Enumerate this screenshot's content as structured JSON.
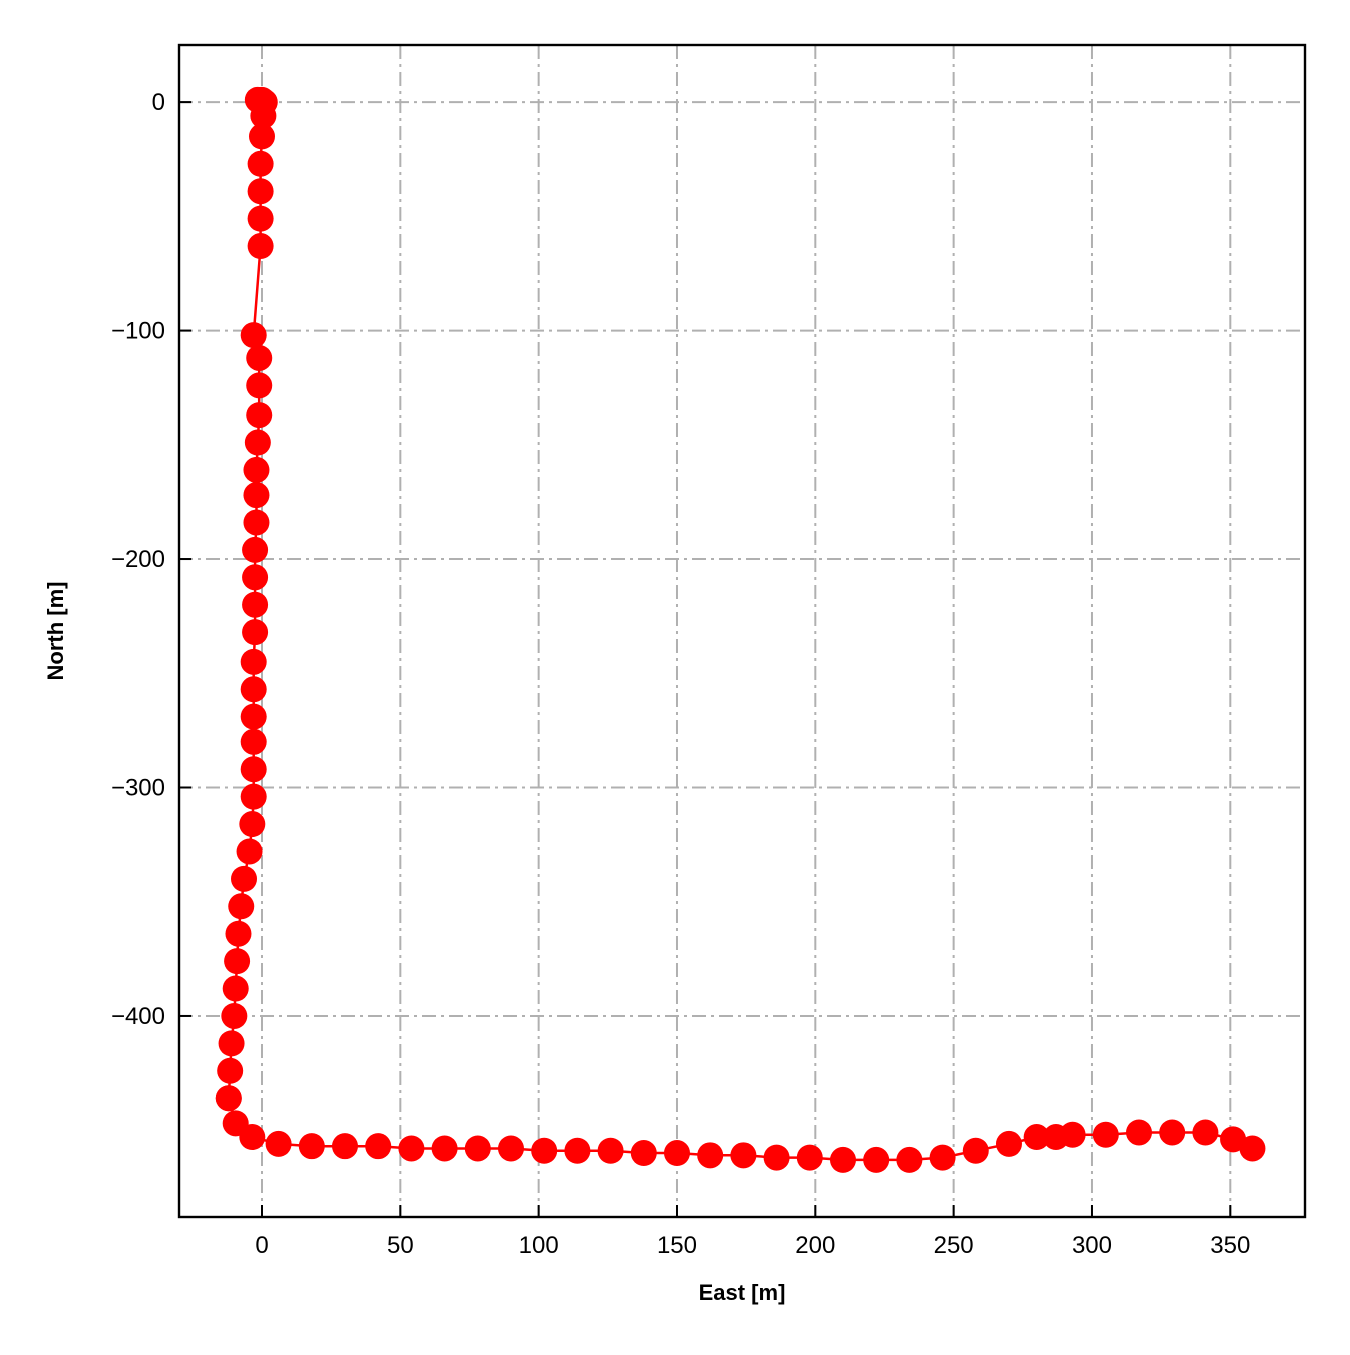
{
  "chart_data": {
    "type": "line",
    "title": "",
    "xlabel": "East [m]",
    "ylabel": "North [m]",
    "xlim": [
      -30,
      377
    ],
    "ylim": [
      -488,
      25
    ],
    "xticks": [
      0,
      50,
      100,
      150,
      200,
      250,
      300,
      350
    ],
    "yticks": [
      0,
      -100,
      -200,
      -300,
      -400
    ],
    "xtick_labels": [
      "0",
      "50",
      "100",
      "150",
      "200",
      "250",
      "300",
      "350"
    ],
    "ytick_labels": [
      "0",
      "−100",
      "−200",
      "−300",
      "−400"
    ],
    "grid": true,
    "grid_style": "dashdot",
    "legend": "none",
    "series": [
      {
        "color": "#ff0000",
        "marker": "circle",
        "x": [
          -1.5,
          0,
          1,
          0.5,
          0,
          -0.5,
          -0.5,
          -0.5,
          -0.5,
          -3,
          -1,
          -1,
          -1,
          -1.5,
          -2,
          -2,
          -2,
          -2.5,
          -2.5,
          -2.5,
          -2.5,
          -3,
          -3,
          -3,
          -3,
          -3,
          -3,
          -3.5,
          -4.5,
          -6.5,
          -7.5,
          -8.5,
          -9,
          -9.5,
          -10,
          -11,
          -11.5,
          -12,
          -12,
          -9.5,
          -3.5,
          6,
          18,
          30,
          42,
          54,
          66,
          78,
          90,
          102,
          114,
          126,
          138,
          150,
          162,
          174,
          186,
          198,
          210,
          222,
          234,
          246,
          258,
          270,
          280,
          287,
          293,
          305,
          317,
          329,
          341,
          351,
          358
        ],
        "y": [
          1,
          1,
          0,
          -6,
          -15,
          -27,
          -39,
          -51,
          -63,
          -102,
          -112,
          -124,
          -137,
          -149,
          -161,
          -172,
          -184,
          -196,
          -208,
          -220,
          -232,
          -245,
          -257,
          -269,
          -280,
          -292,
          -304,
          -316,
          -328,
          -340,
          -352,
          -364,
          -376,
          -388,
          -400,
          -412,
          -424,
          -436,
          -436,
          -447,
          -453,
          -456,
          -457,
          -457,
          -457,
          -458,
          -458,
          -458,
          -458,
          -459,
          -459,
          -459,
          -460,
          -460,
          -461,
          -461,
          -462,
          -462,
          -463,
          -463,
          -463,
          -462,
          -459,
          -456,
          -453,
          -453,
          -452,
          -452,
          -451,
          -451,
          -451,
          -454,
          -458
        ]
      }
    ]
  }
}
